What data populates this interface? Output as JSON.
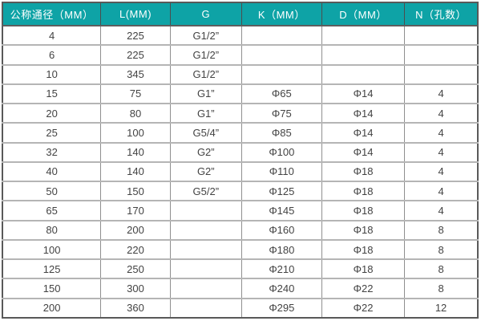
{
  "table": {
    "name": "valve-dimension-spec-table",
    "header_bg": "#0ea3a6",
    "header_text_color": "#ffffff",
    "body_text_color": "#434343",
    "columns": [
      "公称通径（MM）",
      "L(MM)",
      "G",
      "K（MM）",
      "D（MM）",
      "N（孔数）"
    ],
    "rows": [
      [
        "4",
        "225",
        "G1/2”",
        "",
        "",
        ""
      ],
      [
        "6",
        "225",
        "G1/2”",
        "",
        "",
        ""
      ],
      [
        "10",
        "345",
        "G1/2”",
        "",
        "",
        ""
      ],
      [
        "15",
        "75",
        "G1”",
        "Φ65",
        "Φ14",
        "4"
      ],
      [
        "20",
        "80",
        "G1”",
        "Φ75",
        "Φ14",
        "4"
      ],
      [
        "25",
        "100",
        "G5/4”",
        "Φ85",
        "Φ14",
        "4"
      ],
      [
        "32",
        "140",
        "G2”",
        "Φ100",
        "Φ14",
        "4"
      ],
      [
        "40",
        "140",
        "G2”",
        "Φ110",
        "Φ18",
        "4"
      ],
      [
        "50",
        "150",
        "G5/2”",
        "Φ125",
        "Φ18",
        "4"
      ],
      [
        "65",
        "170",
        "",
        "Φ145",
        "Φ18",
        "4"
      ],
      [
        "80",
        "200",
        "",
        "Φ160",
        "Φ18",
        "8"
      ],
      [
        "100",
        "220",
        "",
        "Φ180",
        "Φ18",
        "8"
      ],
      [
        "125",
        "250",
        "",
        "Φ210",
        "Φ18",
        "8"
      ],
      [
        "150",
        "300",
        "",
        "Φ240",
        "Φ22",
        "8"
      ],
      [
        "200",
        "360",
        "",
        "Φ295",
        "Φ22",
        "12"
      ]
    ]
  }
}
